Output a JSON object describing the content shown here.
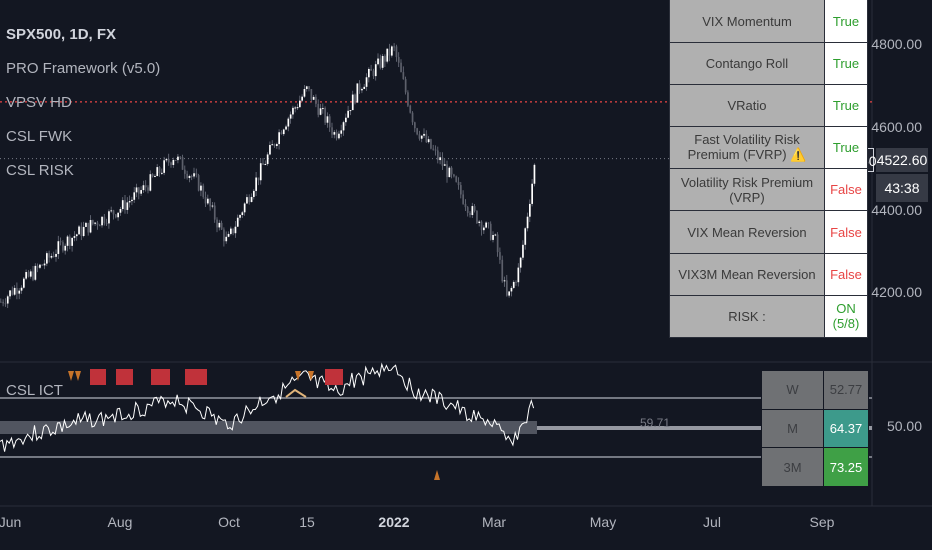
{
  "chart": {
    "symbol_line": "SPX500, 1D, FX",
    "indicators": [
      "PRO Framework (v5.0)",
      "VPSV HD",
      "CSL FWK",
      "CSL RISK"
    ],
    "lower_indicator": "CSL ICT",
    "mid_value": "59.71"
  },
  "price_axis": {
    "labels": [
      "4800.00",
      "4600.00",
      "4400.00",
      "4200.00"
    ],
    "lower_label": "50.00",
    "symbol_tag": "SPX500",
    "current_price": "4522.60",
    "countdown": "43:38"
  },
  "time_axis": [
    {
      "label": "Jun",
      "major": false
    },
    {
      "label": "Aug",
      "major": false
    },
    {
      "label": "Oct",
      "major": false
    },
    {
      "label": "15",
      "major": false
    },
    {
      "label": "2022",
      "major": true
    },
    {
      "label": "Mar",
      "major": false
    },
    {
      "label": "May",
      "major": false
    },
    {
      "label": "Jul",
      "major": false
    },
    {
      "label": "Sep",
      "major": false
    }
  ],
  "risk_table": [
    {
      "label": "VIX Momentum",
      "value": "True",
      "status": "true"
    },
    {
      "label": "Contango Roll",
      "value": "True",
      "status": "true"
    },
    {
      "label": "VRatio",
      "value": "True",
      "status": "true"
    },
    {
      "label": "Fast Volatility Risk Premium (FVRP) ⚠️",
      "value": "True",
      "status": "true"
    },
    {
      "label": "Volatility Risk Premium (VRP)",
      "value": "False",
      "status": "false"
    },
    {
      "label": "VIX Mean Reversion",
      "value": "False",
      "status": "false"
    },
    {
      "label": "VIX3M Mean Reversion",
      "value": "False",
      "status": "false"
    },
    {
      "label": "RISK :",
      "value": "ON (5/8)",
      "status": "true"
    }
  ],
  "stat_table": [
    {
      "label": "W",
      "value": "52.77",
      "color": "#6f7174"
    },
    {
      "label": "M",
      "value": "64.37",
      "color": "#3d9a8b"
    },
    {
      "label": "3M",
      "value": "73.25",
      "color": "#3fa046"
    }
  ],
  "colors": {
    "background": "#131722",
    "candle": "#ffffff",
    "resistance_line": "#e84545",
    "true_text": "#2e9e2e",
    "false_text": "#e84545",
    "signal_box": "#c0323a",
    "signal_triangle": "#c7742a"
  },
  "chart_data": {
    "type": "candlestick",
    "symbol": "SPX500",
    "timeframe": "1D",
    "y_axis_ticks": [
      4200,
      4400,
      4600,
      4800
    ],
    "ylim": [
      4100,
      4900
    ],
    "last_close": 4522.6,
    "resistance_level": 4660,
    "close_path": [
      [
        "2021-05-20",
        4150
      ],
      [
        "2021-06-01",
        4200
      ],
      [
        "2021-06-15",
        4250
      ],
      [
        "2021-07-01",
        4320
      ],
      [
        "2021-07-15",
        4360
      ],
      [
        "2021-08-01",
        4400
      ],
      [
        "2021-08-15",
        4450
      ],
      [
        "2021-09-01",
        4530
      ],
      [
        "2021-09-15",
        4460
      ],
      [
        "2021-10-01",
        4320
      ],
      [
        "2021-10-15",
        4450
      ],
      [
        "2021-11-01",
        4600
      ],
      [
        "2021-11-15",
        4690
      ],
      [
        "2021-12-01",
        4580
      ],
      [
        "2021-12-15",
        4700
      ],
      [
        "2022-01-03",
        4790
      ],
      [
        "2022-01-15",
        4600
      ],
      [
        "2022-02-01",
        4500
      ],
      [
        "2022-02-15",
        4400
      ],
      [
        "2022-03-01",
        4330
      ],
      [
        "2022-03-08",
        4180
      ],
      [
        "2022-03-15",
        4260
      ],
      [
        "2022-03-24",
        4522.6
      ]
    ]
  }
}
